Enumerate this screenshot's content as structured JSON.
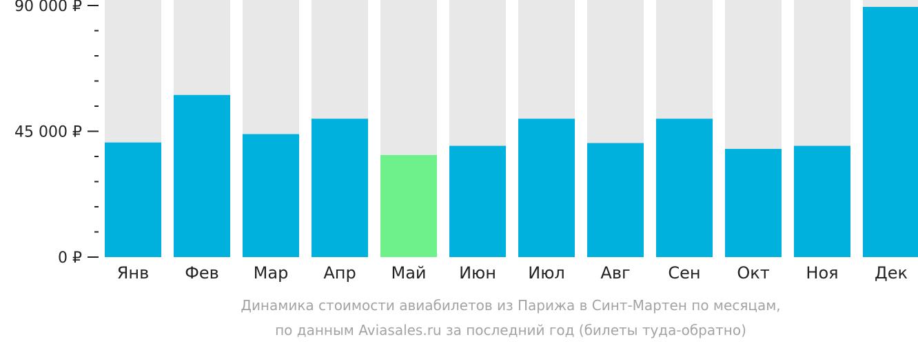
{
  "chart_data": {
    "type": "bar",
    "categories": [
      "Янв",
      "Фев",
      "Мар",
      "Апр",
      "Май",
      "Июн",
      "Июл",
      "Авг",
      "Сен",
      "Окт",
      "Ноя",
      "Дек"
    ],
    "values": [
      41000,
      58000,
      44000,
      49500,
      36500,
      39800,
      49500,
      40800,
      49500,
      38700,
      39800,
      89500
    ],
    "highlight_index": 4,
    "ylim": [
      0,
      90000
    ],
    "yticks": [
      {
        "value": 0,
        "label": "0 ₽"
      },
      {
        "value": 45000,
        "label": "45 000 ₽"
      },
      {
        "value": 90000,
        "label": "90 000 ₽"
      }
    ],
    "minor_tick_step": 9000,
    "title": "",
    "xlabel": "",
    "ylabel": "",
    "grid": false,
    "legend": "none",
    "colors": {
      "bar": "#00b0dd",
      "highlight": "#6ef08a",
      "track": "#e8e8e8",
      "axis": "#222222",
      "caption": "#a3a3a3"
    }
  },
  "caption": {
    "line1": "Динамика стоимости авиабилетов из Парижа в Синт-Мартен по месяцам,",
    "line2": "по данным Aviasales.ru за последний год (билеты туда-обратно)"
  }
}
